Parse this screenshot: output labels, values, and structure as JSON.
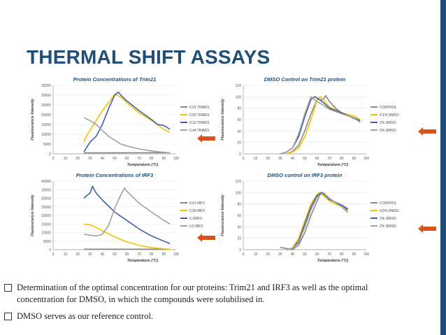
{
  "slide": {
    "title": "THERMAL SHIFT ASSAYS",
    "colors": {
      "title": "#1f4e79",
      "bar": "#1f4e79",
      "arrow": "#d9531e"
    },
    "bullets": [
      "Determination of the optimal concentration for our proteins: Trim21 and IRF3 as well as the optimal concentration for DMSO, in which the compounds were solubilised in.",
      "DMSO serves as our reference control."
    ],
    "arrow_icon": "arrow-left-icon"
  },
  "chart_data": [
    {
      "type": "line",
      "title": "Protein Concentrations of Trim21",
      "xlabel": "Temperature (°C)",
      "ylabel": "Fluorescence Intensity",
      "xlim": [
        0,
        100
      ],
      "ylim": [
        0,
        35000
      ],
      "xticks": [
        0,
        10,
        20,
        30,
        40,
        50,
        60,
        70,
        80,
        90,
        100
      ],
      "yticks": [
        0,
        5000,
        10000,
        15000,
        20000,
        25000,
        30000,
        35000
      ],
      "legend_position": "right",
      "series": [
        {
          "name": "0.01 TRIM21",
          "color": "#888888",
          "points": [
            [
              25,
              500
            ],
            [
              95,
              600
            ]
          ]
        },
        {
          "name": "0.05 TRIM21",
          "color": "#f2c200",
          "points": [
            [
              25,
              6000
            ],
            [
              27,
              9000
            ],
            [
              30,
              12000
            ],
            [
              35,
              17000
            ],
            [
              40,
              22000
            ],
            [
              45,
              26000
            ],
            [
              50,
              30500
            ],
            [
              55,
              29000
            ],
            [
              60,
              26000
            ],
            [
              70,
              21000
            ],
            [
              80,
              17000
            ],
            [
              90,
              12500
            ],
            [
              95,
              11000
            ]
          ]
        },
        {
          "name": "0.10 TRIM21",
          "color": "#3f5fa8",
          "points": [
            [
              25,
              1000
            ],
            [
              27,
              3000
            ],
            [
              30,
              6000
            ],
            [
              35,
              9000
            ],
            [
              40,
              15000
            ],
            [
              45,
              23000
            ],
            [
              50,
              30000
            ],
            [
              53,
              31500
            ],
            [
              55,
              30000
            ],
            [
              60,
              27000
            ],
            [
              70,
              22000
            ],
            [
              80,
              17500
            ],
            [
              85,
              15000
            ],
            [
              90,
              14500
            ],
            [
              95,
              12500
            ]
          ]
        },
        {
          "name": "0.44 TRIM21",
          "color": "#a0a0a0",
          "points": [
            [
              25,
              18500
            ],
            [
              30,
              17000
            ],
            [
              35,
              15000
            ],
            [
              40,
              12000
            ],
            [
              45,
              9000
            ],
            [
              50,
              7000
            ],
            [
              55,
              5000
            ],
            [
              60,
              4000
            ],
            [
              70,
              2500
            ],
            [
              80,
              1500
            ],
            [
              90,
              800
            ],
            [
              95,
              500
            ]
          ]
        }
      ]
    },
    {
      "type": "line",
      "title": "DMSO Control on Trim21 protein",
      "xlabel": "Temperature (°C)",
      "ylabel": "Fluorescence Intensity",
      "xlim": [
        0,
        100
      ],
      "ylim": [
        0,
        120
      ],
      "xticks": [
        0,
        10,
        20,
        30,
        40,
        50,
        60,
        70,
        80,
        90,
        100
      ],
      "yticks": [
        0,
        20,
        40,
        60,
        80,
        100,
        120
      ],
      "legend_position": "right",
      "series": [
        {
          "name": "CONTROL",
          "color": "#888888",
          "points": [
            [
              35,
              0
            ],
            [
              40,
              4
            ],
            [
              45,
              15
            ],
            [
              50,
              40
            ],
            [
              55,
              70
            ],
            [
              60,
              95
            ],
            [
              65,
              95
            ],
            [
              67,
              102
            ],
            [
              70,
              92
            ],
            [
              75,
              80
            ],
            [
              80,
              72
            ],
            [
              85,
              67
            ],
            [
              90,
              63
            ],
            [
              95,
              60
            ]
          ]
        },
        {
          "name": "0.1% DMSO",
          "color": "#f2c200",
          "points": [
            [
              35,
              0
            ],
            [
              40,
              3
            ],
            [
              45,
              10
            ],
            [
              50,
              30
            ],
            [
              55,
              60
            ],
            [
              58,
              80
            ],
            [
              60,
              95
            ],
            [
              63,
              100
            ],
            [
              65,
              95
            ],
            [
              70,
              82
            ],
            [
              80,
              72
            ],
            [
              90,
              66
            ],
            [
              95,
              60
            ]
          ]
        },
        {
          "name": "1% DMSO",
          "color": "#3f5fa8",
          "points": [
            [
              30,
              0
            ],
            [
              35,
              3
            ],
            [
              40,
              10
            ],
            [
              45,
              30
            ],
            [
              50,
              65
            ],
            [
              55,
              95
            ],
            [
              58,
              100
            ],
            [
              60,
              98
            ],
            [
              65,
              90
            ],
            [
              70,
              80
            ],
            [
              80,
              72
            ],
            [
              90,
              62
            ],
            [
              95,
              58
            ]
          ]
        },
        {
          "name": "2% DMSO",
          "color": "#a0a0a0",
          "points": [
            [
              30,
              0
            ],
            [
              35,
              3
            ],
            [
              40,
              10
            ],
            [
              45,
              35
            ],
            [
              50,
              70
            ],
            [
              55,
              100
            ],
            [
              60,
              92
            ],
            [
              65,
              85
            ],
            [
              70,
              78
            ],
            [
              80,
              70
            ],
            [
              90,
              63
            ],
            [
              95,
              55
            ]
          ]
        }
      ]
    },
    {
      "type": "line",
      "title": "Protein Concentrations of IRF3",
      "xlabel": "Temperature (°C)",
      "ylabel": "Fluorescence Intensity",
      "xlim": [
        0,
        100
      ],
      "ylim": [
        0,
        40000
      ],
      "xticks": [
        0,
        10,
        20,
        30,
        40,
        50,
        60,
        70,
        80,
        90,
        100
      ],
      "yticks": [
        0,
        5000,
        10000,
        15000,
        20000,
        25000,
        30000,
        35000,
        40000
      ],
      "legend_position": "right",
      "series": [
        {
          "name": "0.01 IRF3",
          "color": "#888888",
          "points": [
            [
              25,
              300
            ],
            [
              95,
              300
            ]
          ]
        },
        {
          "name": "0.05 IRF3",
          "color": "#f2c200",
          "points": [
            [
              25,
              15000
            ],
            [
              30,
              14500
            ],
            [
              35,
              13000
            ],
            [
              40,
              11000
            ],
            [
              50,
              7500
            ],
            [
              60,
              4500
            ],
            [
              70,
              2500
            ],
            [
              80,
              1200
            ],
            [
              90,
              500
            ],
            [
              95,
              300
            ]
          ]
        },
        {
          "name": "0.1IRF3",
          "color": "#3f5fa8",
          "points": [
            [
              25,
              30000
            ],
            [
              28,
              32000
            ],
            [
              30,
              33000
            ],
            [
              32,
              37000
            ],
            [
              35,
              33000
            ],
            [
              40,
              29000
            ],
            [
              50,
              22000
            ],
            [
              60,
              17000
            ],
            [
              70,
              12000
            ],
            [
              80,
              8000
            ],
            [
              90,
              5000
            ],
            [
              95,
              3500
            ]
          ]
        },
        {
          "name": "0.5 IRF3",
          "color": "#a0a0a0",
          "points": [
            [
              25,
              9000
            ],
            [
              30,
              8500
            ],
            [
              35,
              8000
            ],
            [
              40,
              9000
            ],
            [
              45,
              14000
            ],
            [
              50,
              24000
            ],
            [
              55,
              32000
            ],
            [
              58,
              36000
            ],
            [
              60,
              34000
            ],
            [
              70,
              27000
            ],
            [
              80,
              22000
            ],
            [
              90,
              17000
            ],
            [
              95,
              15000
            ]
          ]
        }
      ]
    },
    {
      "type": "line",
      "title": "DMSO control on IRF3 protein",
      "xlabel": "Temperature (°C)",
      "ylabel": "Fluorescence Intensity",
      "xlim": [
        0,
        100
      ],
      "ylim": [
        0,
        120
      ],
      "xticks": [
        0,
        10,
        20,
        30,
        40,
        50,
        60,
        70,
        80,
        90,
        100
      ],
      "yticks": [
        0,
        20,
        40,
        60,
        80,
        100,
        120
      ],
      "legend_position": "right",
      "series": [
        {
          "name": "CONTROL",
          "color": "#888888",
          "points": [
            [
              30,
              4
            ],
            [
              35,
              2
            ],
            [
              40,
              0
            ],
            [
              45,
              8
            ],
            [
              50,
              30
            ],
            [
              55,
              60
            ],
            [
              60,
              85
            ],
            [
              63,
              100
            ],
            [
              65,
              98
            ],
            [
              70,
              88
            ],
            [
              80,
              78
            ],
            [
              85,
              72
            ]
          ]
        },
        {
          "name": "0.5% DMSO",
          "color": "#f2c200",
          "points": [
            [
              35,
              0
            ],
            [
              40,
              3
            ],
            [
              45,
              20
            ],
            [
              50,
              50
            ],
            [
              55,
              80
            ],
            [
              60,
              97
            ],
            [
              62,
              100
            ],
            [
              65,
              95
            ],
            [
              70,
              85
            ],
            [
              80,
              75
            ],
            [
              85,
              68
            ]
          ]
        },
        {
          "name": "1% DMSO",
          "color": "#3f5fa8",
          "points": [
            [
              35,
              0
            ],
            [
              40,
              2
            ],
            [
              45,
              15
            ],
            [
              50,
              45
            ],
            [
              55,
              75
            ],
            [
              60,
              95
            ],
            [
              64,
              100
            ],
            [
              67,
              95
            ],
            [
              70,
              88
            ],
            [
              80,
              78
            ],
            [
              85,
              70
            ]
          ]
        },
        {
          "name": "2% DMSO",
          "color": "#a0a0a0",
          "points": [
            [
              35,
              0
            ],
            [
              40,
              2
            ],
            [
              45,
              12
            ],
            [
              50,
              40
            ],
            [
              55,
              70
            ],
            [
              60,
              92
            ],
            [
              65,
              100
            ],
            [
              70,
              90
            ],
            [
              80,
              75
            ],
            [
              85,
              65
            ]
          ]
        }
      ]
    }
  ]
}
